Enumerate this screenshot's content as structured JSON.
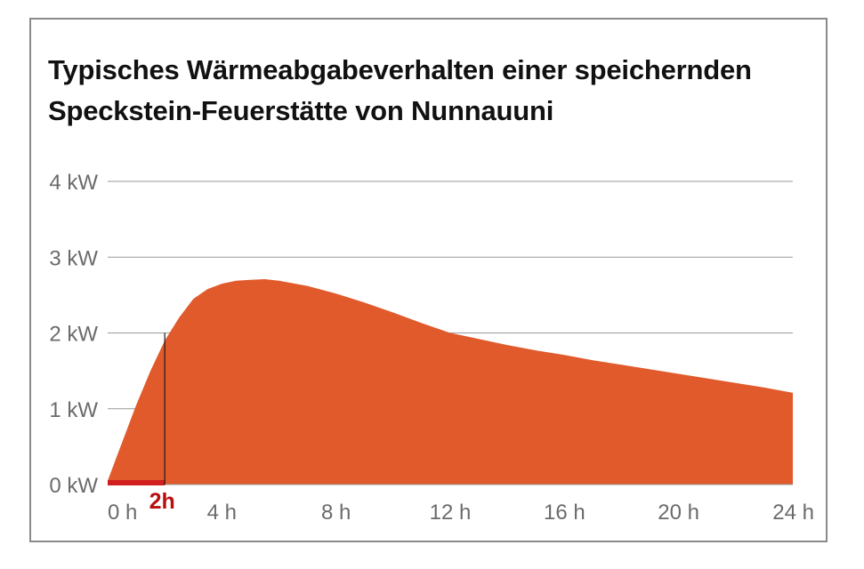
{
  "title_lines": [
    "Typisches Wärmeabgabeverhalten einer speichernden",
    "Speckstein-Feuerstätte von Nunnauuni"
  ],
  "chart_data": {
    "type": "area",
    "title": "Typisches Wärmeabgabeverhalten einer speichernden Speckstein-Feuerstätte von Nunnauuni",
    "xlabel": "",
    "ylabel": "",
    "x_unit": "h",
    "y_unit": "kW",
    "xlim": [
      0,
      24
    ],
    "ylim": [
      0,
      4
    ],
    "x_ticks": [
      0,
      4,
      8,
      12,
      16,
      20,
      24
    ],
    "x_tick_labels": [
      "0 h",
      "4 h",
      "8 h",
      "12 h",
      "16 h",
      "20 h",
      "24 h"
    ],
    "y_ticks": [
      0,
      1,
      2,
      3,
      4
    ],
    "y_tick_labels": [
      "0 kW",
      "1 kW",
      "2 kW",
      "3 kW",
      "4 kW"
    ],
    "grid": true,
    "fill_color": "#e05a2b",
    "series": [
      {
        "x": [
          0,
          0.5,
          1,
          1.5,
          2,
          2.5,
          3,
          3.5,
          4,
          4.5,
          5,
          5.5,
          6,
          7,
          8,
          9,
          10,
          11,
          12,
          13,
          14,
          15,
          16,
          17,
          18,
          19,
          20,
          21,
          22,
          23,
          24
        ],
        "y": [
          0.05,
          0.55,
          1.05,
          1.5,
          1.9,
          2.2,
          2.45,
          2.58,
          2.65,
          2.69,
          2.7,
          2.71,
          2.69,
          2.62,
          2.52,
          2.4,
          2.27,
          2.13,
          2.0,
          1.92,
          1.84,
          1.77,
          1.71,
          1.64,
          1.58,
          1.52,
          1.46,
          1.4,
          1.34,
          1.28,
          1.21
        ]
      }
    ],
    "marker": {
      "x": 2,
      "y": 2.0,
      "label": "2h",
      "color": "#d11f1f",
      "label_color": "#b80f0f"
    },
    "gridline_color": "#9a9a9a",
    "tick_label_color": "#6b6b6b"
  }
}
